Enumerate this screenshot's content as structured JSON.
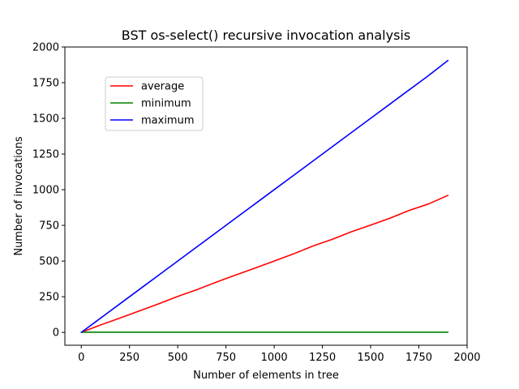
{
  "chart_data": {
    "type": "line",
    "title": "BST os-select() recursive invocation analysis",
    "xlabel": "Number of elements in tree",
    "ylabel": "Number of invocations",
    "xlim": [
      -85,
      2000
    ],
    "ylim": [
      -90,
      2000
    ],
    "xticks": [
      0,
      250,
      500,
      750,
      1000,
      1250,
      1500,
      1750,
      2000
    ],
    "yticks": [
      0,
      250,
      500,
      750,
      1000,
      1250,
      1500,
      1750,
      2000
    ],
    "grid": false,
    "legend_position": "upper-left",
    "x": [
      1,
      100,
      200,
      300,
      400,
      500,
      600,
      700,
      800,
      900,
      1000,
      1100,
      1200,
      1300,
      1400,
      1500,
      1600,
      1700,
      1800,
      1900
    ],
    "series": [
      {
        "name": "average",
        "color": "#ff0000",
        "values": [
          1,
          52,
          100,
          150,
          200,
          252,
          300,
          352,
          402,
          450,
          500,
          550,
          605,
          652,
          705,
          752,
          800,
          855,
          900,
          960
        ]
      },
      {
        "name": "minimum",
        "color": "#008000",
        "values": [
          1,
          1,
          1,
          1,
          1,
          1,
          1,
          1,
          1,
          1,
          1,
          1,
          1,
          1,
          1,
          1,
          1,
          1,
          1,
          1
        ]
      },
      {
        "name": "maximum",
        "color": "#0000ff",
        "values": [
          1,
          100,
          200,
          300,
          400,
          500,
          600,
          700,
          800,
          900,
          1000,
          1100,
          1200,
          1300,
          1400,
          1500,
          1600,
          1700,
          1800,
          1905
        ]
      }
    ]
  }
}
